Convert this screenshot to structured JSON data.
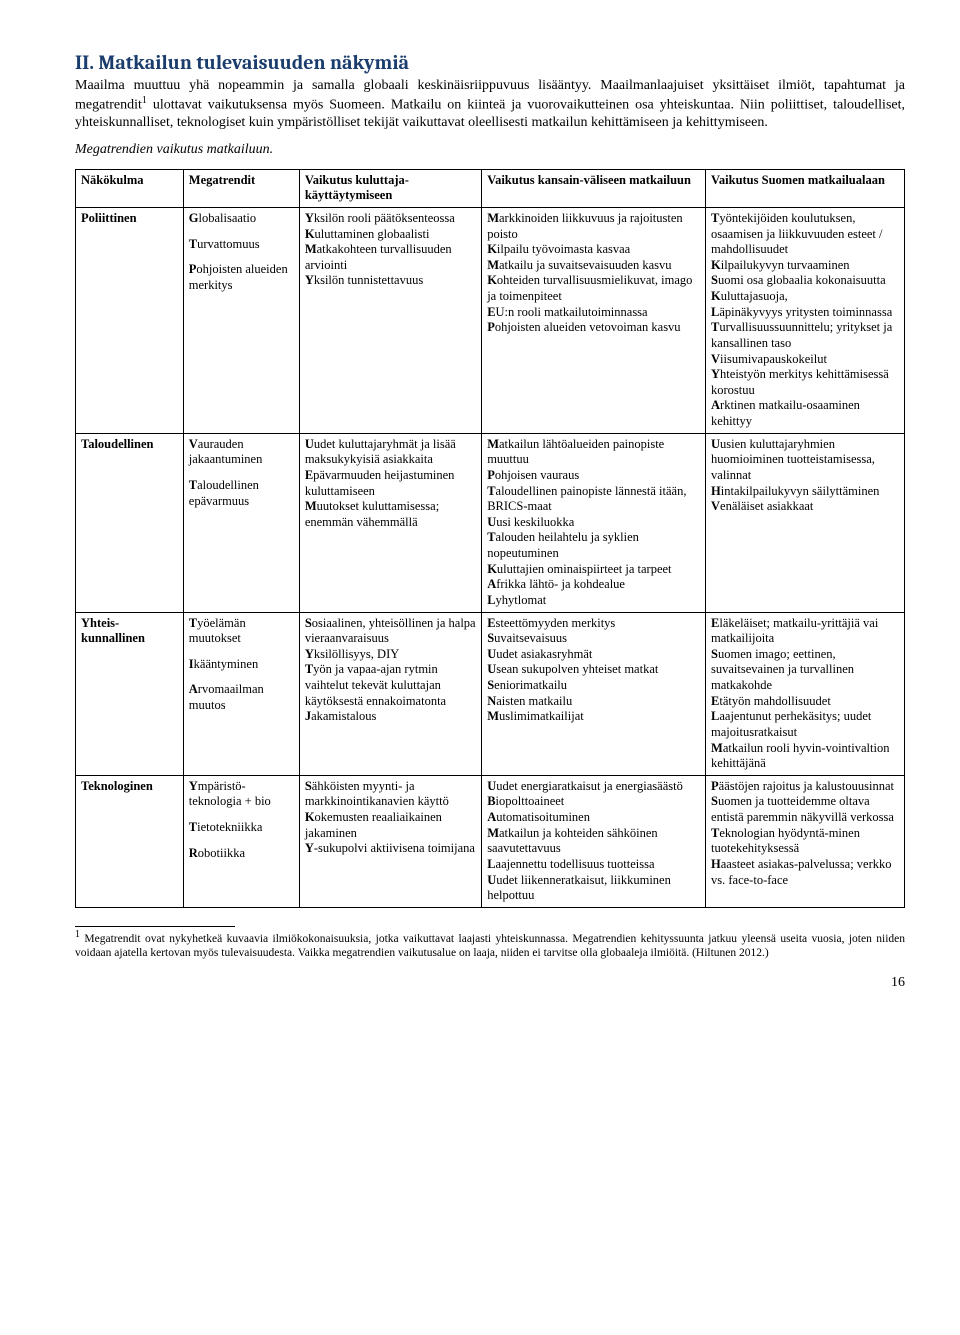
{
  "heading": "II.    Matkailun tulevaisuuden näkymiä",
  "intro_para_pre": "Maailma muuttuu yhä nopeammin ja samalla globaali keskinäisriippuvuus lisääntyy. Maailmanlaajuiset yksittäiset ilmiöt, tapahtumat ja megatrendit",
  "intro_sup": "1",
  "intro_para_post": " ulottavat vaikutuksensa myös Suomeen. Matkailu on kiinteä ja vuorovaikutteinen osa yhteiskuntaa. Niin poliittiset, taloudelliset, yhteiskunnalliset, teknologiset kuin ympäristölliset tekijät vaikuttavat oleellisesti matkailun kehittämiseen ja kehittymiseen.",
  "subhead": "Megatrendien vaikutus matkailuun.",
  "headers": {
    "c1": "Näkökulma",
    "c2": "Megatrendit",
    "c3": "Vaikutus kuluttaja-käyttäytymiseen",
    "c4": "Vaikutus kansain-väliseen matkailuun",
    "c5": "Vaikutus Suomen matkailualaan"
  },
  "rows": [
    {
      "c1": "Poliittinen",
      "c2_items": [
        "Globalisaatio",
        "Turvattomuus",
        "Pohjoisten alueiden merkitys"
      ],
      "c3": "Yksilön rooli päätöksenteossa\nKuluttaminen globaalisti\nMatkakohteen turvallisuuden arviointi\nYksilön tunnistettavuus",
      "c4": "Markkinoiden liikkuvuus ja rajoitusten poisto\nKilpailu työvoimasta kasvaa\nMatkailu ja suvaitsevaisuuden kasvu\nKohteiden turvallisuusmielikuvat, imago ja toimenpiteet\nEU:n rooli matkailutoiminnassa\nPohjoisten alueiden vetovoiman kasvu",
      "c5": "Työntekijöiden koulutuksen, osaamisen ja liikkuvuuden esteet / mahdollisuudet\nKilpailukyvyn turvaaminen\nSuomi osa globaalia kokonaisuutta\nKuluttajasuoja,\nLäpinäkyvyys yritysten toiminnassa\nTurvallisuussuunnittelu; yritykset ja kansallinen taso\nViisumivapauskokeilut\nYhteistyön merkitys kehittämisessä korostuu\nArktinen matkailu-osaaminen kehittyy"
    },
    {
      "c1": "Taloudellinen",
      "c2_items": [
        "Vaurauden jakaantuminen",
        "Taloudellinen epävarmuus"
      ],
      "c3": "Uudet kuluttajaryhmät ja lisää maksukykyisiä asiakkaita\nEpävarmuuden heijastuminen kuluttamiseen\nMuutokset kuluttamisessa; enemmän vähemmällä",
      "c4": "Matkailun lähtöalueiden painopiste muuttuu\nPohjoisen vauraus\nTaloudellinen painopiste lännestä itään, BRICS-maat\nUusi keskiluokka\nTalouden heilahtelu ja syklien nopeutuminen\nKuluttajien ominaispiirteet ja tarpeet\nAfrikka lähtö- ja kohdealue\nLyhytlomat",
      "c5": "Uusien kuluttajaryhmien huomioiminen tuotteistamisessa, valinnat\nHintakilpailukyvyn säilyttäminen\nVenäläiset asiakkaat"
    },
    {
      "c1": "Yhteis-kunnallinen",
      "c2_items": [
        "Työelämän muutokset",
        "Ikääntyminen",
        "Arvomaailman muutos"
      ],
      "c3": "Sosiaalinen, yhteisöllinen ja halpa vieraanvaraisuus\nYksilöllisyys, DIY\nTyön ja vapaa-ajan rytmin vaihtelut tekevät kuluttajan käytöksestä ennakoimatonta\nJakamistalous",
      "c4": "Esteettömyyden merkitys\nSuvaitsevaisuus\nUudet asiakasryhmät\nUsean sukupolven yhteiset matkat\nSeniorimatkailu\nNaisten matkailu\nMuslimimatkailijat",
      "c5": "Eläkeläiset; matkailu-yrittäjiä vai matkailijoita\nSuomen imago; eettinen, suvaitsevainen ja turvallinen matkakohde\nEtätyön mahdollisuudet\nLaajentunut perhekäsitys; uudet majoitusratkaisut\nMatkailun rooli hyvin-vointivaltion kehittäjänä"
    },
    {
      "c1": "Teknologinen",
      "c2_items": [
        "Ympäristö-teknologia + bio",
        "Tietotekniikka",
        "Robotiikka"
      ],
      "c3": "Sähköisten myynti- ja markkinointikanavien käyttö\nKokemusten reaaliaikainen jakaminen\nY-sukupolvi aktiivisena toimijana",
      "c4": "Uudet energiaratkaisut ja energiasäästö\nBiopolttoaineet\nAutomatisoituminen\nMatkailun ja kohteiden sähköinen saavutettavuus\nLaajennettu todellisuus tuotteissa\nUudet liikenneratkaisut, liikkuminen helpottuu",
      "c5": "Päästöjen rajoitus ja kalustouusinnat\nSuomen ja tuotteidemme oltava entistä paremmin näkyvillä verkossa\nTeknologian hyödyntä-minen tuotekehityksessä\nHaasteet asiakas-palvelussa; verkko vs. face-to-face"
    }
  ],
  "footnote_sup": "1",
  "footnote": " Megatrendit ovat nykyhetkeä kuvaavia ilmiökokonaisuuksia, jotka vaikuttavat laajasti yhteiskunnassa. Megatrendien kehityssuunta jatkuu yleensä useita vuosia, joten niiden voidaan ajatella kertovan myös tulevaisuudesta. Vaikka megatrendien vaikutusalue on laaja, niiden ei tarvitse olla globaaleja ilmiöitä. (Hiltunen 2012.)",
  "page_num": "16"
}
